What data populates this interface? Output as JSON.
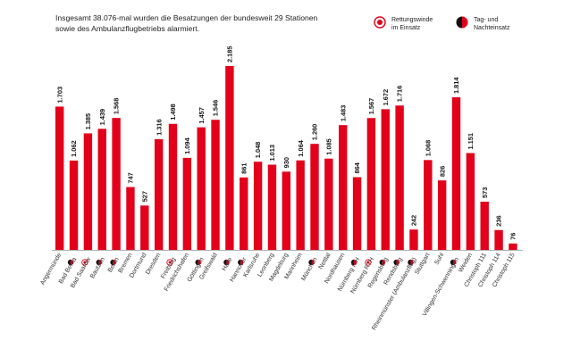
{
  "intro_text": "Insgesamt 38.076-mal wurden die Besatzungen der bundesweit 29 Stationen sowie des Ambulanzflugbetriebs alarmiert.",
  "legend": {
    "winch": {
      "line1": "Rettungswinde",
      "line2": "im Einsatz",
      "icon": "winch-circle-icon",
      "color": "#e2001a"
    },
    "daynight": {
      "line1": "Tag- und",
      "line2": "Nachteinsatz",
      "icon": "day-night-icon",
      "color": "#e2001a"
    }
  },
  "chart_data": {
    "type": "bar",
    "title": "Insgesamt 38.076-mal wurden die Besatzungen der bundesweit 29 Stationen sowie des Ambulanzflugbetriebs alarmiert.",
    "xlabel": "",
    "ylabel": "",
    "ylim": [
      0,
      2300
    ],
    "bar_color": "#e2001a",
    "categories": [
      "Angermünde",
      "Bad Berka",
      "Bad Saarow",
      "Bautzen",
      "Berlin",
      "Bremen",
      "Dortmund",
      "Dresden",
      "Freiburg",
      "Friedrichshafen",
      "Göttingen",
      "Greifswald",
      "Halle",
      "Hannover",
      "Karlsruhe",
      "Leonberg",
      "Magdeburg",
      "Mannheim",
      "München",
      "Nettlal",
      "Nordhausen",
      "Nürnberg ITH",
      "Nürnberg RTH",
      "Regensburg",
      "Rendsburg",
      "Rheinmünster (Ambulanzflug)",
      "Stuttgart",
      "Suhl",
      "Villingen-Schwenningen",
      "Weiden",
      "Christoph 111",
      "Christoph 114",
      "Christoph 115"
    ],
    "values": [
      1703,
      1062,
      1385,
      1439,
      1568,
      747,
      527,
      1316,
      1498,
      1094,
      1457,
      1546,
      2185,
      861,
      1048,
      1013,
      930,
      1064,
      1260,
      1085,
      1483,
      864,
      1567,
      1672,
      1716,
      242,
      1068,
      826,
      1814,
      1151,
      573,
      236,
      76
    ],
    "value_labels": [
      "1.703",
      "1.062",
      "1.385",
      "1.439",
      "1.568",
      "747",
      "527",
      "1.316",
      "1.498",
      "1.094",
      "1.457",
      "1.546",
      "2.185",
      "861",
      "1.048",
      "1.013",
      "930",
      "1.064",
      "1.260",
      "1.085",
      "1.483",
      "864",
      "1.567",
      "1.672",
      "1.716",
      "242",
      "1.068",
      "826",
      "1.814",
      "1.151",
      "573",
      "236",
      "76"
    ],
    "markers": [
      "",
      "daynight",
      "winch",
      "daynight",
      "daynight",
      "",
      "",
      "",
      "winch",
      "",
      "daynight",
      "",
      "daynight",
      "daynight",
      "",
      "",
      "",
      "",
      "daynight",
      "",
      "",
      "daynight",
      "winch",
      "daynight",
      "daynight",
      "daynight",
      "",
      "",
      "daynight",
      "",
      "",
      "",
      ""
    ]
  }
}
